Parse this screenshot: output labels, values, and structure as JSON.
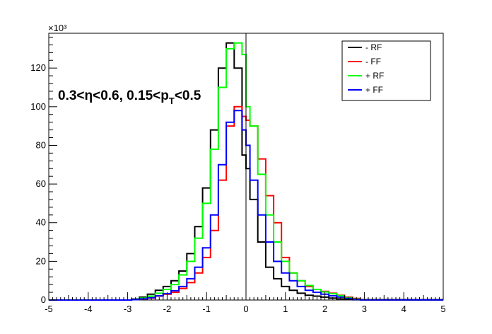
{
  "chart_data": {
    "type": "line",
    "drawstyle": "histogram-step",
    "xlim": [
      -5,
      5
    ],
    "ylim": [
      0,
      138000
    ],
    "y_multiplier_label": "×10³",
    "x_ticks": [
      -5,
      -4,
      -3,
      -2,
      -1,
      0,
      1,
      2,
      3,
      4,
      5
    ],
    "y_ticks": [
      0,
      20000,
      40000,
      60000,
      80000,
      100000,
      120000
    ],
    "y_tick_labels": [
      "0",
      "20",
      "40",
      "60",
      "80",
      "100",
      "120"
    ],
    "vertical_reference_line_x": 0,
    "annotation": {
      "prefix": "0.3<η<0.6, 0.15<p",
      "subscript": "T",
      "suffix": "<0.5"
    },
    "legend_position": "top-right",
    "x": [
      -5.0,
      -2.9,
      -2.7,
      -2.5,
      -2.3,
      -2.1,
      -1.9,
      -1.7,
      -1.5,
      -1.3,
      -1.1,
      -0.9,
      -0.7,
      -0.5,
      -0.3,
      -0.1,
      0.0,
      0.1,
      0.3,
      0.5,
      0.7,
      0.9,
      1.1,
      1.3,
      1.5,
      1.7,
      1.9,
      2.1,
      2.3,
      2.5,
      2.7,
      2.9,
      5.0
    ],
    "series": [
      {
        "name": "- RF",
        "color": "#000000",
        "values": [
          0,
          500,
          1500,
          3000,
          5000,
          7000,
          10000,
          15000,
          24000,
          38000,
          58000,
          88000,
          120000,
          133000,
          120000,
          75000,
          68000,
          52000,
          30000,
          17000,
          11000,
          7000,
          5000,
          3500,
          2500,
          2000,
          1500,
          1000,
          600,
          300,
          150,
          50,
          0
        ]
      },
      {
        "name": "- FF",
        "color": "#ff0000",
        "values": [
          0,
          200,
          500,
          1000,
          2000,
          3000,
          4000,
          6000,
          9000,
          14000,
          22000,
          36000,
          62000,
          90000,
          100000,
          95000,
          93000,
          90000,
          73000,
          54000,
          40000,
          22000,
          14000,
          10000,
          7000,
          5500,
          4500,
          3500,
          2500,
          1500,
          800,
          300,
          0
        ]
      },
      {
        "name": "+ RF",
        "color": "#00ff00",
        "values": [
          0,
          300,
          1000,
          2000,
          3500,
          5500,
          8000,
          13000,
          20000,
          32000,
          50000,
          78000,
          110000,
          130000,
          133000,
          127000,
          100000,
          90000,
          65000,
          44000,
          30000,
          20000,
          14000,
          10000,
          7500,
          5500,
          4200,
          3300,
          2300,
          1200,
          500,
          200,
          0
        ]
      },
      {
        "name": "+ FF",
        "color": "#0000ff",
        "values": [
          0,
          200,
          600,
          1200,
          2200,
          3300,
          4800,
          7000,
          11000,
          17000,
          27000,
          44000,
          70000,
          92000,
          98000,
          88000,
          80000,
          62000,
          44000,
          30000,
          20000,
          14000,
          10000,
          7000,
          5000,
          4000,
          3000,
          2200,
          1500,
          800,
          300,
          100,
          0
        ]
      }
    ]
  }
}
